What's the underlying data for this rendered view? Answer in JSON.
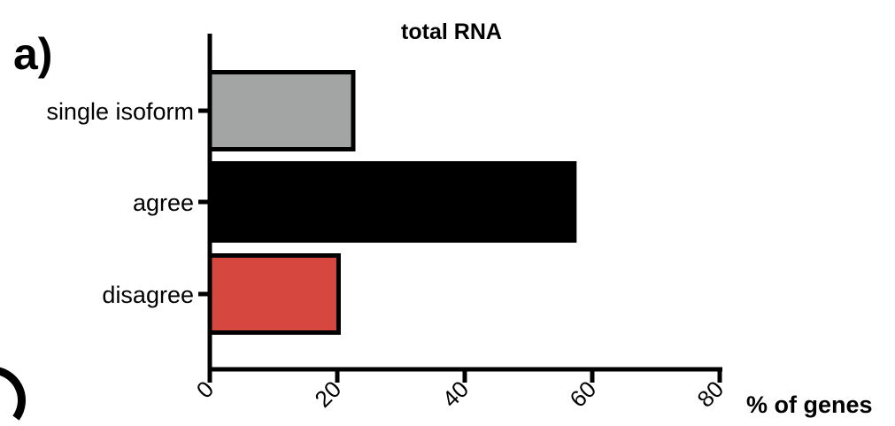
{
  "panel_label": "a)",
  "chart_data": {
    "type": "bar",
    "orientation": "horizontal",
    "title": "total RNA",
    "xlabel": "% of genes",
    "ylabel": "",
    "categories": [
      "single isoform",
      "agree",
      "disagree"
    ],
    "values": [
      22.5,
      57.2,
      20.2
    ],
    "colors": [
      "#a2a5a3",
      "#000000",
      "#d6483f"
    ],
    "xlim": [
      0,
      80
    ],
    "xticks": [
      "0",
      "20",
      "40",
      "60",
      "80"
    ],
    "grid": false,
    "legend": "none"
  }
}
